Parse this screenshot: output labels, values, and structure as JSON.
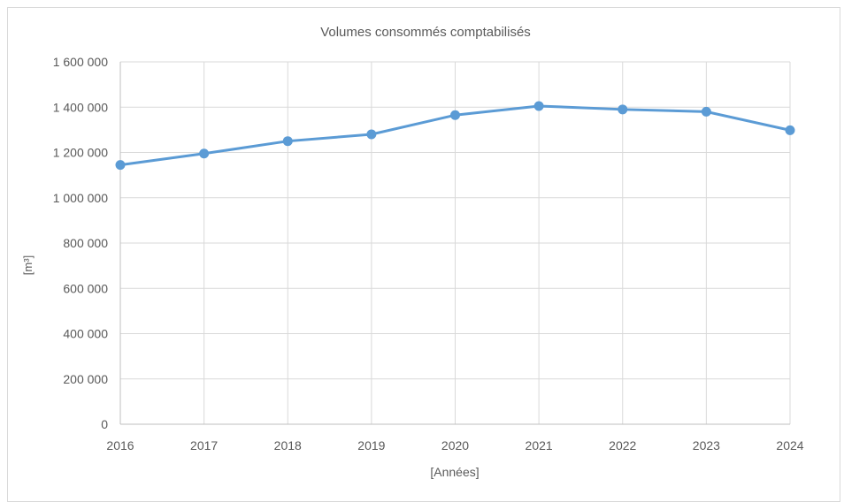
{
  "chart_data": {
    "type": "line",
    "title": "Volumes consommés comptabilisés",
    "xlabel": "[Années]",
    "ylabel": "[m³]",
    "x": [
      2016,
      2017,
      2018,
      2019,
      2020,
      2021,
      2022,
      2023,
      2024
    ],
    "series": [
      {
        "values": [
          1145000,
          1195000,
          1250000,
          1280000,
          1365000,
          1405000,
          1390000,
          1380000,
          1298000
        ],
        "color": "#5b9bd5"
      }
    ],
    "ylim": [
      0,
      1600000
    ],
    "yticks": [
      {
        "value": 0,
        "label": "0"
      },
      {
        "value": 200000,
        "label": "200 000"
      },
      {
        "value": 400000,
        "label": "400 000"
      },
      {
        "value": 600000,
        "label": "600 000"
      },
      {
        "value": 800000,
        "label": "800 000"
      },
      {
        "value": 1000000,
        "label": "1 000 000"
      },
      {
        "value": 1200000,
        "label": "1 200 000"
      },
      {
        "value": 1400000,
        "label": "1 400 000"
      },
      {
        "value": 1600000,
        "label": "1 600 000"
      }
    ],
    "grid": true,
    "legend": "none"
  }
}
